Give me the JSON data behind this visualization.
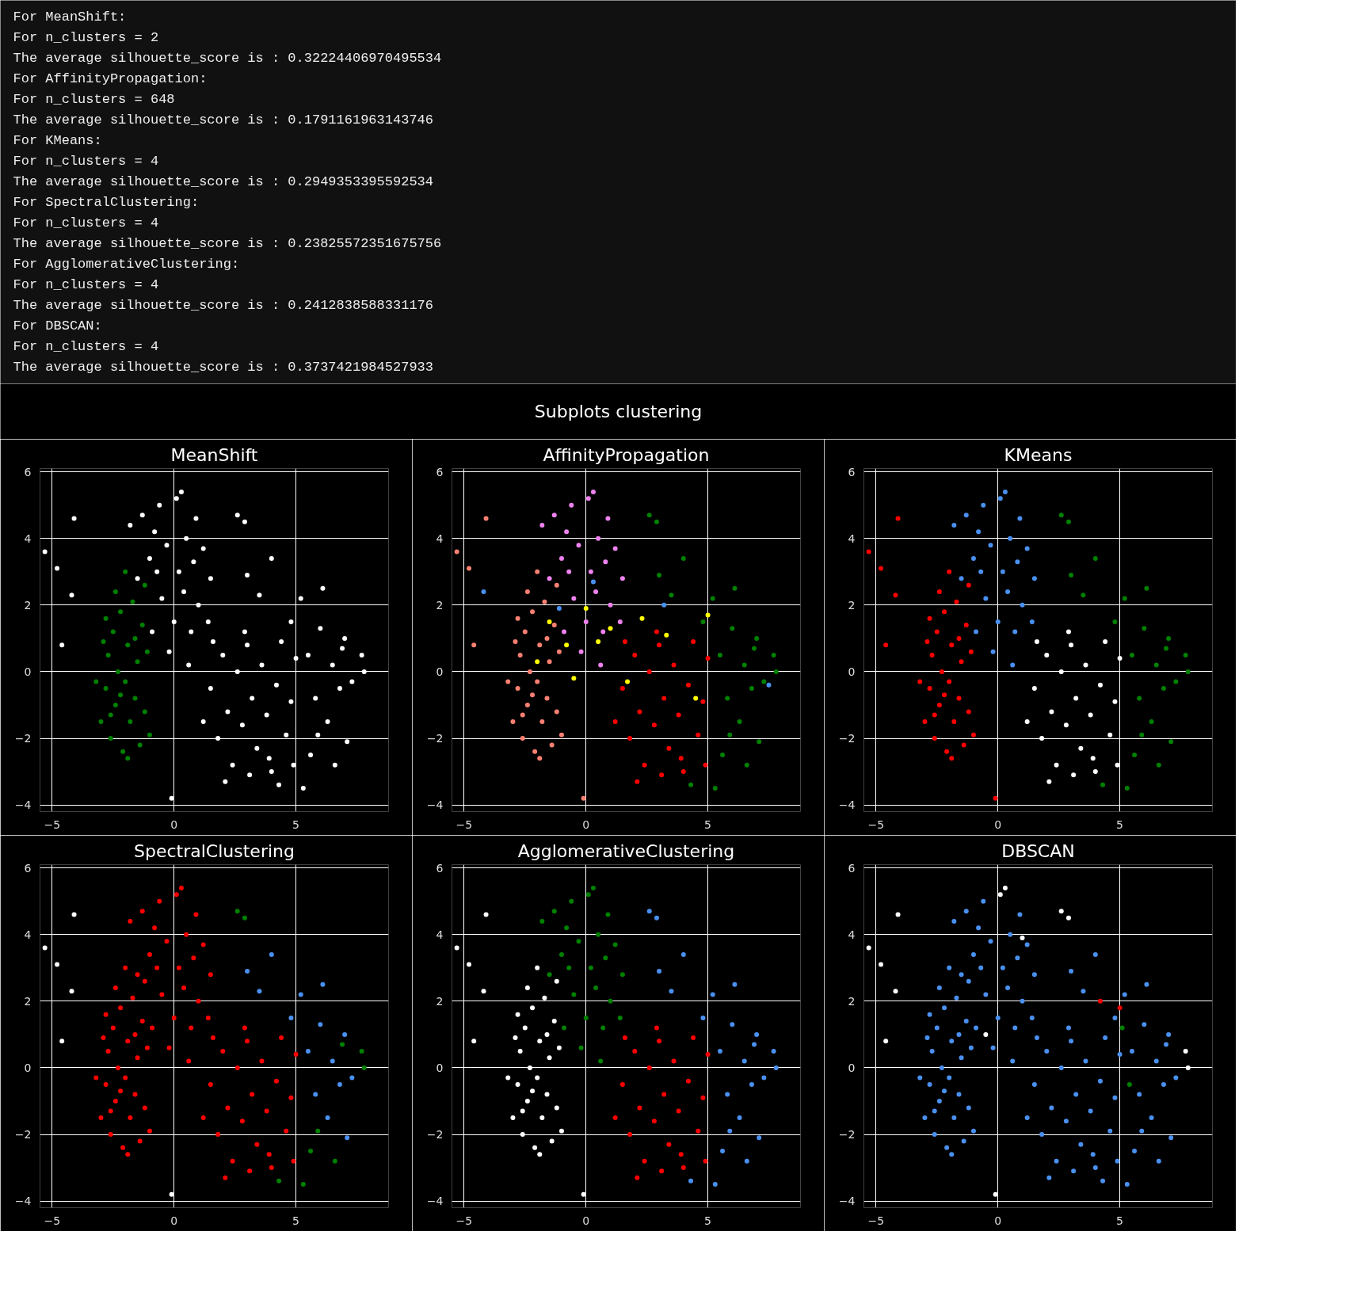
{
  "chart_data": [
    {
      "type": "other",
      "annotations": [
        "For MeanShift:",
        " For n_clusters = 2",
        " The average silhouette_score is : 0.32224406970495534",
        "For AffinityPropagation:",
        " For n_clusters = 648",
        " The average silhouette_score is : 0.1791161963143746",
        "For KMeans:",
        " For n_clusters = 4",
        " The average silhouette_score is : 0.2949353395592534",
        "For SpectralClustering:",
        " For n_clusters = 4",
        " The average silhouette_score is : 0.23825572351675756",
        "For AgglomerativeClustering:",
        " For n_clusters = 4",
        " The average silhouette_score is : 0.2412838588331176",
        "For DBSCAN:",
        " For n_clusters = 4",
        " The average silhouette_score is : 0.3737421984527933"
      ]
    },
    {
      "type": "other",
      "title": "Subplots clustering"
    },
    {
      "type": "scatter",
      "title": "MeanShift",
      "xlim": [
        -5.5,
        8.8
      ],
      "ylim": [
        -4.2,
        6.1
      ],
      "xticks": [
        -5,
        0,
        5
      ],
      "yticks": [
        -4,
        -2,
        0,
        2,
        4,
        6
      ],
      "grid": true,
      "marker": "circle",
      "series": [
        {
          "color": "#008000",
          "x": [
            -3,
            -2.8,
            -2.7,
            -2.6,
            -2.5,
            -2.4,
            -2.3,
            -2.2,
            -2.1,
            -2,
            -1.9,
            -1.8,
            -1.7,
            -1.6,
            -1.5,
            -1.4,
            -1.3,
            -1.2,
            -1.1,
            -1,
            -2.9,
            -2.6,
            -2.2,
            -1.9,
            -1.6,
            -2.4,
            -2,
            -1.2,
            -3.2,
            -2.8
          ],
          "values": [
            -1.5,
            -0.5,
            0.5,
            -2,
            1.2,
            -1,
            0,
            1.8,
            -2.4,
            -0.3,
            0.8,
            -1.5,
            2.1,
            -0.8,
            0.3,
            -2.2,
            1.4,
            -1.2,
            0.6,
            -1.9,
            0.9,
            -1.3,
            -0.7,
            -2.6,
            1,
            2.4,
            3,
            2.6,
            -0.3,
            1.6
          ]
        },
        {
          "color": "#ffffff",
          "x": [
            -1.5,
            -1,
            -0.8,
            -0.6,
            -0.5,
            -0.3,
            0,
            0.1,
            0.2,
            0.3,
            0.4,
            0.5,
            0.7,
            0.8,
            1,
            1.2,
            1.4,
            -1.8,
            -0.9,
            -0.2,
            0.6,
            1.5,
            -1.3,
            0.9,
            -0.7,
            1.5,
            1.8,
            2,
            2.2,
            2.4,
            2.6,
            2.8,
            3,
            3.2,
            3.4,
            3.6,
            3.8,
            4,
            4.2,
            4.4,
            4.6,
            4.8,
            5,
            2.1,
            3.1,
            1.2,
            1.6,
            2.9,
            3.9,
            4.9,
            3,
            3.5,
            4,
            4.8,
            5.2,
            5.5,
            5.8,
            6,
            6.1,
            6.3,
            6.5,
            6.8,
            7,
            7.1,
            7.3,
            7.7,
            7.8,
            5.3,
            5.6,
            6.6,
            2.6,
            2.9,
            5.9,
            4.3,
            6.9,
            -5.3,
            -4.8,
            -4.1,
            -4.2,
            -4.6,
            -0.1
          ],
          "values": [
            2.8,
            3.4,
            4.2,
            5,
            2.2,
            3.8,
            1.5,
            5.2,
            3,
            5.4,
            2.4,
            4,
            1.2,
            3.3,
            2,
            3.7,
            1.5,
            4.4,
            1.2,
            0.6,
            0.2,
            2.8,
            4.7,
            4.6,
            3,
            -0.5,
            -2,
            0.5,
            -1.2,
            -2.8,
            0,
            -1.6,
            0.8,
            -0.8,
            -2.3,
            0.2,
            -1.3,
            -3,
            -0.4,
            0.9,
            -1.9,
            -0.9,
            0.4,
            -3.3,
            -3.1,
            -1.5,
            0.9,
            1.2,
            -2.6,
            -2.8,
            2.9,
            2.3,
            3.4,
            1.5,
            2.2,
            0.5,
            -0.8,
            1.3,
            2.5,
            -1.5,
            0.2,
            -0.5,
            1,
            -2.1,
            -0.3,
            0.5,
            0,
            -3.5,
            -2.5,
            -2.8,
            4.7,
            4.5,
            -1.9,
            -3.4,
            0.7,
            3.6,
            3.1,
            4.6,
            2.3,
            0.8,
            -3.8
          ]
        }
      ]
    },
    {
      "type": "scatter",
      "title": "AffinityPropagation",
      "xlim": [
        -5.5,
        8.8
      ],
      "ylim": [
        -4.2,
        6.1
      ],
      "xticks": [
        -5,
        0,
        5
      ],
      "yticks": [
        -4,
        -2,
        0,
        2,
        4,
        6
      ],
      "grid": true,
      "marker": "circle",
      "series": [
        {
          "color": "#fa8072",
          "x": [
            -3,
            -2.8,
            -2.7,
            -2.6,
            -2.5,
            -2.4,
            -2.3,
            -2.2,
            -2.1,
            -2,
            -1.9,
            -1.8,
            -1.7,
            -1.6,
            -1.5,
            -1.4,
            -1.3,
            -1.2,
            -1.1,
            -1,
            -2.9,
            -2.6,
            -2.2,
            -1.9,
            -1.6,
            -2.4,
            -2,
            -1.2,
            -3.2,
            -2.8,
            -5.3,
            -4.8,
            -4.1,
            -4.6,
            -0.1
          ],
          "values": [
            -1.5,
            -0.5,
            0.5,
            -2,
            1.2,
            -1,
            0,
            1.8,
            -2.4,
            -0.3,
            0.8,
            -1.5,
            2.1,
            -0.8,
            0.3,
            -2.2,
            1.4,
            -1.2,
            0.6,
            -1.9,
            0.9,
            -1.3,
            -0.7,
            -2.6,
            1,
            2.4,
            3,
            2.6,
            -0.3,
            1.6,
            3.6,
            3.1,
            4.6,
            0.8,
            -3.8
          ]
        },
        {
          "color": "#ee82ee",
          "x": [
            -1.5,
            -1,
            -0.8,
            -0.6,
            -0.5,
            -0.3,
            0,
            0.1,
            0.2,
            0.3,
            0.4,
            0.5,
            0.7,
            0.8,
            1,
            1.2,
            1.4,
            -1.8,
            -0.9,
            -0.2,
            0.6,
            1.5,
            -1.3,
            0.9,
            -0.7
          ],
          "values": [
            2.8,
            3.4,
            4.2,
            5,
            2.2,
            3.8,
            1.5,
            5.2,
            3,
            5.4,
            2.4,
            4,
            1.2,
            3.3,
            2,
            3.7,
            1.5,
            4.4,
            1.2,
            0.6,
            0.2,
            2.8,
            4.7,
            4.6,
            3
          ]
        },
        {
          "color": "#ff0000",
          "x": [
            1.5,
            1.8,
            2,
            2.2,
            2.4,
            2.6,
            2.8,
            3,
            3.2,
            3.4,
            3.6,
            3.8,
            4,
            4.2,
            4.4,
            4.6,
            4.8,
            5,
            2.1,
            3.1,
            1.2,
            1.6,
            2.9,
            3.9,
            4.9
          ],
          "values": [
            -0.5,
            -2,
            0.5,
            -1.2,
            -2.8,
            0,
            -1.6,
            0.8,
            -0.8,
            -2.3,
            0.2,
            -1.3,
            -3,
            -0.4,
            0.9,
            -1.9,
            -0.9,
            0.4,
            -3.3,
            -3.1,
            -1.5,
            0.9,
            1.2,
            -2.6,
            -2.8
          ]
        },
        {
          "color": "#008000",
          "x": [
            3,
            3.5,
            4,
            4.8,
            5.2,
            5.5,
            5.8,
            6,
            6.1,
            6.3,
            6.5,
            6.8,
            7,
            7.1,
            7.3,
            7.7,
            7.8,
            5.3,
            5.6,
            6.6,
            2.6,
            2.9,
            5.9,
            4.3,
            6.9
          ],
          "values": [
            2.9,
            2.3,
            3.4,
            1.5,
            2.2,
            0.5,
            -0.8,
            1.3,
            2.5,
            -1.5,
            0.2,
            -0.5,
            1,
            -2.1,
            -0.3,
            0.5,
            0,
            -3.5,
            -2.5,
            -2.8,
            4.7,
            4.5,
            -1.9,
            -3.4,
            0.7
          ]
        },
        {
          "color": "#ffff00",
          "x": [
            -2,
            -1.5,
            -0.8,
            -0.5,
            0,
            0.5,
            1,
            1.7,
            2.3,
            3.3,
            4.5,
            5
          ],
          "values": [
            0.3,
            1.5,
            0.8,
            -0.2,
            1.9,
            0.9,
            1.3,
            -0.3,
            1.6,
            1.1,
            -0.8,
            1.7
          ]
        },
        {
          "color": "#4a90f0",
          "x": [
            -4.2,
            -1.1,
            0.3,
            3.2,
            7.5
          ],
          "values": [
            2.4,
            1.9,
            2.7,
            2,
            -0.4
          ]
        }
      ]
    },
    {
      "type": "scatter",
      "title": "KMeans",
      "xlim": [
        -5.5,
        8.8
      ],
      "ylim": [
        -4.2,
        6.1
      ],
      "xticks": [
        -5,
        0,
        5
      ],
      "yticks": [
        -4,
        -2,
        0,
        2,
        4,
        6
      ],
      "grid": true,
      "marker": "circle",
      "series": [
        {
          "color": "#ff0000",
          "x": [
            -3,
            -2.8,
            -2.7,
            -2.6,
            -2.5,
            -2.4,
            -2.3,
            -2.2,
            -2.1,
            -2,
            -1.9,
            -1.8,
            -1.7,
            -1.6,
            -1.5,
            -1.4,
            -1.3,
            -1.2,
            -1.1,
            -1,
            -2.9,
            -2.6,
            -2.2,
            -1.9,
            -1.6,
            -2.4,
            -2,
            -1.2,
            -3.2,
            -2.8,
            -5.3,
            -4.8,
            -4.1,
            -4.2,
            -4.6,
            -0.1
          ],
          "values": [
            -1.5,
            -0.5,
            0.5,
            -2,
            1.2,
            -1,
            0,
            1.8,
            -2.4,
            -0.3,
            0.8,
            -1.5,
            2.1,
            -0.8,
            0.3,
            -2.2,
            1.4,
            -1.2,
            0.6,
            -1.9,
            0.9,
            -1.3,
            -0.7,
            -2.6,
            1,
            2.4,
            3,
            2.6,
            -0.3,
            1.6,
            3.6,
            3.1,
            4.6,
            2.3,
            0.8,
            -3.8
          ]
        },
        {
          "color": "#4a90f0",
          "x": [
            -1.5,
            -1,
            -0.8,
            -0.6,
            -0.5,
            -0.3,
            0,
            0.1,
            0.2,
            0.3,
            0.4,
            0.5,
            0.7,
            0.8,
            1,
            1.2,
            1.4,
            -1.8,
            -0.9,
            -0.2,
            0.6,
            1.5,
            -1.3,
            0.9,
            -0.7
          ],
          "values": [
            2.8,
            3.4,
            4.2,
            5,
            2.2,
            3.8,
            1.5,
            5.2,
            3,
            5.4,
            2.4,
            4,
            1.2,
            3.3,
            2,
            3.7,
            1.5,
            4.4,
            1.2,
            0.6,
            0.2,
            2.8,
            4.7,
            4.6,
            3
          ]
        },
        {
          "color": "#ffffff",
          "x": [
            1.5,
            1.8,
            2,
            2.2,
            2.4,
            2.6,
            2.8,
            3,
            3.2,
            3.4,
            3.6,
            3.8,
            4,
            4.2,
            4.4,
            4.6,
            4.8,
            5,
            2.1,
            3.1,
            1.2,
            1.6,
            2.9,
            3.9,
            4.9
          ],
          "values": [
            -0.5,
            -2,
            0.5,
            -1.2,
            -2.8,
            0,
            -1.6,
            0.8,
            -0.8,
            -2.3,
            0.2,
            -1.3,
            -3,
            -0.4,
            0.9,
            -1.9,
            -0.9,
            0.4,
            -3.3,
            -3.1,
            -1.5,
            0.9,
            1.2,
            -2.6,
            -2.8
          ]
        },
        {
          "color": "#008000",
          "x": [
            3,
            3.5,
            4,
            4.8,
            5.2,
            5.5,
            5.8,
            6,
            6.1,
            6.3,
            6.5,
            6.8,
            7,
            7.1,
            7.3,
            7.7,
            7.8,
            5.3,
            5.6,
            6.6,
            2.6,
            2.9,
            5.9,
            4.3,
            6.9
          ],
          "values": [
            2.9,
            2.3,
            3.4,
            1.5,
            2.2,
            0.5,
            -0.8,
            1.3,
            2.5,
            -1.5,
            0.2,
            -0.5,
            1,
            -2.1,
            -0.3,
            0.5,
            0,
            -3.5,
            -2.5,
            -2.8,
            4.7,
            4.5,
            -1.9,
            -3.4,
            0.7
          ]
        }
      ]
    },
    {
      "type": "scatter",
      "title": "SpectralClustering",
      "xlim": [
        -5.5,
        8.8
      ],
      "ylim": [
        -4.2,
        6.1
      ],
      "xticks": [
        -5,
        0,
        5
      ],
      "yticks": [
        -4,
        -2,
        0,
        2,
        4,
        6
      ],
      "grid": true,
      "marker": "circle",
      "series": [
        {
          "color": "#ff0000",
          "x": [
            -3,
            -2.8,
            -2.7,
            -2.6,
            -2.5,
            -2.4,
            -2.3,
            -2.2,
            -2.1,
            -2,
            -1.9,
            -1.8,
            -1.7,
            -1.6,
            -1.5,
            -1.4,
            -1.3,
            -1.2,
            -1.1,
            -1,
            -2.9,
            -2.6,
            -2.2,
            -1.9,
            -1.6,
            -2.4,
            -2,
            -1.2,
            -3.2,
            -2.8,
            -1.5,
            -1,
            -0.8,
            -0.6,
            -0.5,
            -0.3,
            0,
            0.1,
            0.2,
            0.3,
            0.4,
            0.5,
            0.7,
            0.8,
            1,
            1.2,
            1.4,
            -1.8,
            -0.9,
            -0.2,
            0.6,
            1.5,
            -1.3,
            0.9,
            -0.7,
            1.5,
            1.8,
            2,
            2.2,
            2.4,
            2.6,
            2.8,
            3,
            3.2,
            3.4,
            3.6,
            3.8,
            4,
            4.2,
            4.4,
            4.6,
            4.8,
            5,
            2.1,
            3.1,
            1.2,
            1.6,
            2.9,
            3.9,
            4.9
          ],
          "values": [
            -1.5,
            -0.5,
            0.5,
            -2,
            1.2,
            -1,
            0,
            1.8,
            -2.4,
            -0.3,
            0.8,
            -1.5,
            2.1,
            -0.8,
            0.3,
            -2.2,
            1.4,
            -1.2,
            0.6,
            -1.9,
            0.9,
            -1.3,
            -0.7,
            -2.6,
            1,
            2.4,
            3,
            2.6,
            -0.3,
            1.6,
            2.8,
            3.4,
            4.2,
            5,
            2.2,
            3.8,
            1.5,
            5.2,
            3,
            5.4,
            2.4,
            4,
            1.2,
            3.3,
            2,
            3.7,
            1.5,
            4.4,
            1.2,
            0.6,
            0.2,
            2.8,
            4.7,
            4.6,
            3,
            -0.5,
            -2,
            0.5,
            -1.2,
            -2.8,
            0,
            -1.6,
            0.8,
            -0.8,
            -2.3,
            0.2,
            -1.3,
            -3,
            -0.4,
            0.9,
            -1.9,
            -0.9,
            0.4,
            -3.3,
            -3.1,
            -1.5,
            0.9,
            1.2,
            -2.6,
            -2.8
          ]
        },
        {
          "color": "#ffffff",
          "x": [
            -5.3,
            -4.8,
            -4.1,
            -4.2,
            -4.6,
            -0.1
          ],
          "values": [
            3.6,
            3.1,
            4.6,
            2.3,
            0.8,
            -3.8
          ]
        },
        {
          "color": "#4a90f0",
          "x": [
            3,
            3.5,
            4,
            4.8,
            5.2,
            5.5,
            5.8,
            6,
            6.1,
            6.3,
            6.5,
            6.8,
            7,
            7.1,
            7.3
          ],
          "values": [
            2.9,
            2.3,
            3.4,
            1.5,
            2.2,
            0.5,
            -0.8,
            1.3,
            2.5,
            -1.5,
            0.2,
            -0.5,
            1,
            -2.1,
            -0.3
          ]
        },
        {
          "color": "#008000",
          "x": [
            7.7,
            7.8,
            5.3,
            5.6,
            6.6,
            2.6,
            2.9,
            5.9,
            4.3,
            6.9
          ],
          "values": [
            0.5,
            0,
            -3.5,
            -2.5,
            -2.8,
            4.7,
            4.5,
            -1.9,
            -3.4,
            0.7
          ]
        }
      ]
    },
    {
      "type": "scatter",
      "title": "AgglomerativeClustering",
      "xlim": [
        -5.5,
        8.8
      ],
      "ylim": [
        -4.2,
        6.1
      ],
      "xticks": [
        -5,
        0,
        5
      ],
      "yticks": [
        -4,
        -2,
        0,
        2,
        4,
        6
      ],
      "grid": true,
      "marker": "circle",
      "series": [
        {
          "color": "#ffffff",
          "x": [
            -3,
            -2.8,
            -2.7,
            -2.6,
            -2.5,
            -2.4,
            -2.3,
            -2.2,
            -2.1,
            -2,
            -1.9,
            -1.8,
            -1.7,
            -1.6,
            -1.5,
            -1.4,
            -1.3,
            -1.2,
            -1.1,
            -1,
            -2.9,
            -2.6,
            -2.2,
            -1.9,
            -1.6,
            -2.4,
            -2,
            -1.2,
            -3.2,
            -2.8,
            -5.3,
            -4.8,
            -4.1,
            -4.2,
            -4.6,
            -0.1
          ],
          "values": [
            -1.5,
            -0.5,
            0.5,
            -2,
            1.2,
            -1,
            0,
            1.8,
            -2.4,
            -0.3,
            0.8,
            -1.5,
            2.1,
            -0.8,
            0.3,
            -2.2,
            1.4,
            -1.2,
            0.6,
            -1.9,
            0.9,
            -1.3,
            -0.7,
            -2.6,
            1,
            2.4,
            3,
            2.6,
            -0.3,
            1.6,
            3.6,
            3.1,
            4.6,
            2.3,
            0.8,
            -3.8
          ]
        },
        {
          "color": "#008000",
          "x": [
            -1.5,
            -1,
            -0.8,
            -0.6,
            -0.5,
            -0.3,
            0,
            0.1,
            0.2,
            0.3,
            0.4,
            0.5,
            0.7,
            0.8,
            1,
            1.2,
            1.4,
            -1.8,
            -0.9,
            -0.2,
            0.6,
            1.5,
            -1.3,
            0.9,
            -0.7
          ],
          "values": [
            2.8,
            3.4,
            4.2,
            5,
            2.2,
            3.8,
            1.5,
            5.2,
            3,
            5.4,
            2.4,
            4,
            1.2,
            3.3,
            2,
            3.7,
            1.5,
            4.4,
            1.2,
            0.6,
            0.2,
            2.8,
            4.7,
            4.6,
            3
          ]
        },
        {
          "color": "#ff0000",
          "x": [
            1.5,
            1.8,
            2,
            2.2,
            2.4,
            2.6,
            2.8,
            3,
            3.2,
            3.4,
            3.6,
            3.8,
            4,
            4.2,
            4.4,
            4.6,
            4.8,
            5,
            2.1,
            3.1,
            1.2,
            1.6,
            2.9,
            3.9,
            4.9
          ],
          "values": [
            -0.5,
            -2,
            0.5,
            -1.2,
            -2.8,
            0,
            -1.6,
            0.8,
            -0.8,
            -2.3,
            0.2,
            -1.3,
            -3,
            -0.4,
            0.9,
            -1.9,
            -0.9,
            0.4,
            -3.3,
            -3.1,
            -1.5,
            0.9,
            1.2,
            -2.6,
            -2.8
          ]
        },
        {
          "color": "#4a90f0",
          "x": [
            3,
            3.5,
            4,
            4.8,
            5.2,
            5.5,
            5.8,
            6,
            6.1,
            6.3,
            6.5,
            6.8,
            7,
            7.1,
            7.3,
            7.7,
            7.8,
            5.3,
            5.6,
            6.6,
            2.6,
            2.9,
            5.9,
            4.3,
            6.9
          ],
          "values": [
            2.9,
            2.3,
            3.4,
            1.5,
            2.2,
            0.5,
            -0.8,
            1.3,
            2.5,
            -1.5,
            0.2,
            -0.5,
            1,
            -2.1,
            -0.3,
            0.5,
            0,
            -3.5,
            -2.5,
            -2.8,
            4.7,
            4.5,
            -1.9,
            -3.4,
            0.7
          ]
        }
      ]
    },
    {
      "type": "scatter",
      "title": "DBSCAN",
      "xlim": [
        -5.5,
        8.8
      ],
      "ylim": [
        -4.2,
        6.1
      ],
      "xticks": [
        -5,
        0,
        5
      ],
      "yticks": [
        -4,
        -2,
        0,
        2,
        4,
        6
      ],
      "grid": true,
      "marker": "circle",
      "series": [
        {
          "color": "#4a90f0",
          "x": [
            -3,
            -2.8,
            -2.7,
            -2.6,
            -2.5,
            -2.4,
            -2.3,
            -2.2,
            -2.1,
            -2,
            -1.9,
            -1.8,
            -1.7,
            -1.6,
            -1.5,
            -1.4,
            -1.3,
            -1.2,
            -1.1,
            -1,
            -2.9,
            -2.6,
            -2.2,
            -1.9,
            -1.6,
            -2.4,
            -2,
            -1.2,
            -3.2,
            -2.8,
            -1.5,
            -1,
            -0.8,
            -0.6,
            -0.5,
            -0.3,
            0,
            0.2,
            0.4,
            0.5,
            0.7,
            0.8,
            1,
            1.2,
            1.4,
            -1.8,
            -0.9,
            -0.2,
            0.6,
            1.5,
            -1.3,
            0.9,
            -0.7,
            1.5,
            1.8,
            2,
            2.2,
            2.4,
            2.6,
            2.8,
            3,
            3.2,
            3.4,
            3.6,
            3.8,
            4,
            4.2,
            4.4,
            4.6,
            4.8,
            5,
            2.1,
            3.1,
            1.2,
            1.6,
            2.9,
            3.9,
            4.9,
            3,
            3.5,
            4,
            4.8,
            5.2,
            5.5,
            5.8,
            6,
            6.1,
            6.3,
            6.5,
            6.8,
            7,
            7.1,
            7.3,
            5.3,
            5.6,
            6.6,
            5.9,
            4.3,
            6.9
          ],
          "values": [
            -1.5,
            -0.5,
            0.5,
            -2,
            1.2,
            -1,
            0,
            1.8,
            -2.4,
            -0.3,
            0.8,
            -1.5,
            2.1,
            -0.8,
            0.3,
            -2.2,
            1.4,
            -1.2,
            0.6,
            -1.9,
            0.9,
            -1.3,
            -0.7,
            -2.6,
            1,
            2.4,
            3,
            2.6,
            -0.3,
            1.6,
            2.8,
            3.4,
            4.2,
            5,
            2.2,
            3.8,
            1.5,
            3,
            2.4,
            4,
            1.2,
            3.3,
            2,
            3.7,
            1.5,
            4.4,
            1.2,
            0.6,
            0.2,
            2.8,
            4.7,
            4.6,
            3,
            -0.5,
            -2,
            0.5,
            -1.2,
            -2.8,
            0,
            -1.6,
            0.8,
            -0.8,
            -2.3,
            0.2,
            -1.3,
            -3,
            -0.4,
            0.9,
            -1.9,
            -0.9,
            0.4,
            -3.3,
            -3.1,
            -1.5,
            0.9,
            1.2,
            -2.6,
            -2.8,
            2.9,
            2.3,
            3.4,
            1.5,
            2.2,
            0.5,
            -0.8,
            1.3,
            2.5,
            -1.5,
            0.2,
            -0.5,
            1,
            -2.1,
            -0.3,
            -3.5,
            -2.5,
            -2.8,
            -1.9,
            -3.4,
            0.7
          ]
        },
        {
          "color": "#ffffff",
          "x": [
            -5.3,
            -4.8,
            -4.1,
            -4.2,
            -4.6,
            -0.1,
            0.3,
            0.1,
            2.6,
            2.9,
            7.7,
            7.8,
            1,
            -0.5
          ],
          "values": [
            3.6,
            3.1,
            4.6,
            2.3,
            0.8,
            -3.8,
            5.4,
            5.2,
            4.7,
            4.5,
            0.5,
            0,
            3.9,
            1
          ]
        },
        {
          "color": "#ff0000",
          "x": [
            4.2,
            5
          ],
          "values": [
            2,
            1.8
          ]
        },
        {
          "color": "#008000",
          "x": [
            5.4,
            5.1
          ],
          "values": [
            -0.5,
            1.2
          ]
        }
      ]
    }
  ]
}
